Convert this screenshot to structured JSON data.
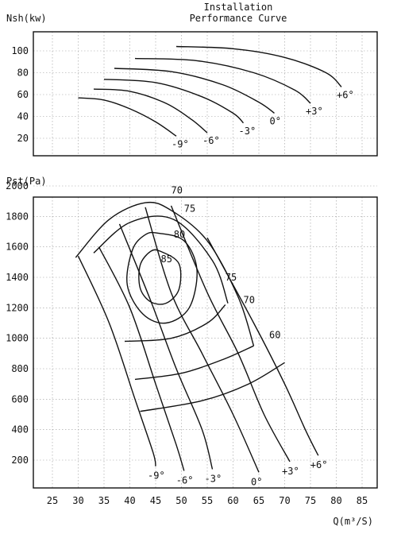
{
  "chart_data": {
    "type": "line",
    "title": "Installation",
    "subtitle": "Performance Curve",
    "xlabel": "Q(m³/S)",
    "x_ticks": [
      25,
      30,
      35,
      40,
      45,
      50,
      55,
      60,
      65,
      70,
      75,
      80,
      85
    ],
    "top": {
      "ylabel": "Nsh(kw)",
      "y_ticks": [
        20,
        40,
        60,
        80,
        100
      ],
      "series": [
        {
          "name": "-9°",
          "points": [
            [
              30,
              57
            ],
            [
              35,
              55
            ],
            [
              40,
              47
            ],
            [
              45,
              35
            ],
            [
              49,
              22
            ]
          ]
        },
        {
          "name": "-6°",
          "points": [
            [
              33,
              65
            ],
            [
              40,
              63
            ],
            [
              47,
              52
            ],
            [
              52,
              37
            ],
            [
              55,
              25
            ]
          ]
        },
        {
          "name": "-3°",
          "points": [
            [
              35,
              74
            ],
            [
              45,
              71
            ],
            [
              54,
              58
            ],
            [
              60,
              43
            ],
            [
              62,
              34
            ]
          ]
        },
        {
          "name": "0°",
          "points": [
            [
              37,
              84
            ],
            [
              48,
              81
            ],
            [
              58,
              69
            ],
            [
              65,
              53
            ],
            [
              68,
              43
            ]
          ]
        },
        {
          "name": "+3°",
          "points": [
            [
              41,
              93
            ],
            [
              53,
              91
            ],
            [
              64,
              80
            ],
            [
              72,
              64
            ],
            [
              75,
              52
            ]
          ]
        },
        {
          "name": "+6°",
          "points": [
            [
              49,
              104
            ],
            [
              60,
              102
            ],
            [
              70,
              94
            ],
            [
              78,
              80
            ],
            [
              81,
              67
            ]
          ]
        }
      ]
    },
    "bottom": {
      "ylabel": "Pst(Pa)",
      "y_ticks": [
        200,
        400,
        600,
        800,
        1000,
        1200,
        1400,
        1600,
        1800,
        2000
      ],
      "blade_series": [
        {
          "name": "-9°",
          "points": [
            [
              30,
              1540
            ],
            [
              36,
              1100
            ],
            [
              41,
              600
            ],
            [
              44.5,
              250
            ],
            [
              45,
              160
            ]
          ]
        },
        {
          "name": "-6°",
          "points": [
            [
              34,
              1600
            ],
            [
              40,
              1200
            ],
            [
              45,
              700
            ],
            [
              49,
              300
            ],
            [
              50.5,
              130
            ]
          ]
        },
        {
          "name": "0°",
          "points": [
            [
              43,
              1860
            ],
            [
              48,
              1300
            ],
            [
              54,
              900
            ],
            [
              60,
              500
            ],
            [
              65,
              120
            ]
          ]
        },
        {
          "name": "-3°",
          "points": [
            [
              38,
              1750
            ],
            [
              44,
              1250
            ],
            [
              49,
              800
            ],
            [
              54,
              400
            ],
            [
              56,
              140
            ]
          ]
        },
        {
          "name": "+3°",
          "points": [
            [
              48,
              1870
            ],
            [
              55,
              1300
            ],
            [
              61,
              900
            ],
            [
              66,
              500
            ],
            [
              71,
              190
            ]
          ]
        },
        {
          "name": "+6°",
          "points": [
            [
              55,
              1660
            ],
            [
              64,
              1100
            ],
            [
              70,
              700
            ],
            [
              74,
              400
            ],
            [
              76.5,
              230
            ]
          ]
        }
      ],
      "efficiency_labels": [
        "70",
        "75",
        "80",
        "85",
        "75",
        "70",
        "60"
      ],
      "efficiency_contours": [
        {
          "name": "85",
          "points": [
            [
              46,
              1570
            ],
            [
              49.5,
              1490
            ],
            [
              49.5,
              1320
            ],
            [
              47,
              1230
            ],
            [
              44,
              1240
            ],
            [
              42,
              1330
            ],
            [
              42,
              1480
            ],
            [
              44,
              1570
            ]
          ]
        },
        {
          "name": "80",
          "points": [
            [
              45.5,
              1690
            ],
            [
              50.5,
              1640
            ],
            [
              53,
              1450
            ],
            [
              51.5,
              1200
            ],
            [
              47,
              1100
            ],
            [
              42.5,
              1160
            ],
            [
              39.5,
              1350
            ],
            [
              40.5,
              1580
            ],
            [
              43,
              1680
            ]
          ]
        }
      ],
      "efficiency_arcs": [
        {
          "name": "75",
          "points": [
            [
              33,
              1560
            ],
            [
              40,
              1760
            ],
            [
              48.5,
              1780
            ],
            [
              56,
              1510
            ],
            [
              59,
              1230
            ]
          ]
        },
        {
          "name": "75",
          "points": [
            [
              39,
              980
            ],
            [
              48,
              1000
            ],
            [
              55,
              1100
            ],
            [
              58.5,
              1220
            ]
          ]
        },
        {
          "name": "70",
          "points": [
            [
              29.5,
              1530
            ],
            [
              36,
              1780
            ],
            [
              43,
              1890
            ],
            [
              48,
              1840
            ],
            [
              55,
              1640
            ],
            [
              61,
              1270
            ],
            [
              64,
              950
            ]
          ]
        },
        {
          "name": "70",
          "points": [
            [
              41,
              730
            ],
            [
              50,
              770
            ],
            [
              58,
              860
            ],
            [
              64,
              950
            ]
          ]
        },
        {
          "name": "60",
          "points": [
            [
              42,
              520
            ],
            [
              54,
              590
            ],
            [
              63,
              700
            ],
            [
              70,
              840
            ]
          ]
        }
      ]
    }
  }
}
